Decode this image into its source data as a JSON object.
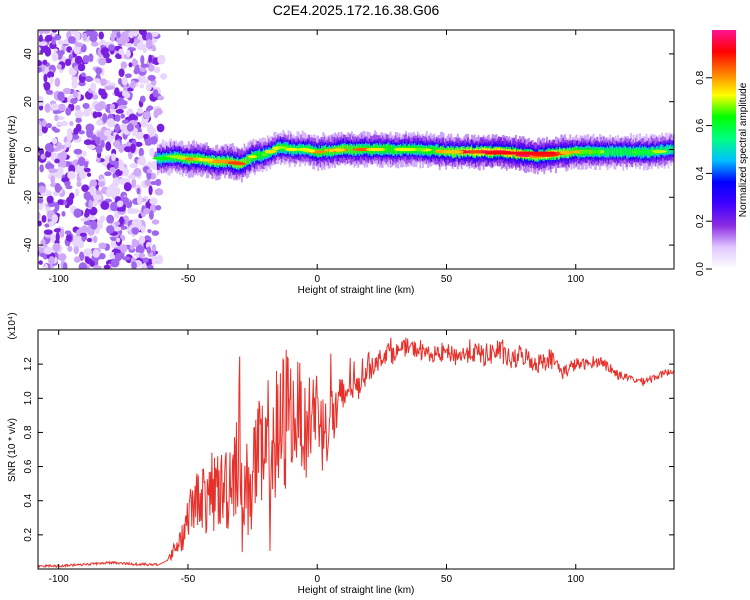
{
  "title": "C2E4.2025.172.16.38.G06",
  "chart_data": [
    {
      "type": "heatmap",
      "xlabel": "Height of straight line (km)",
      "ylabel": "Frequency (Hz)",
      "xlim": [
        -108,
        138
      ],
      "ylim": [
        -50,
        50
      ],
      "xticks": [
        -100,
        -50,
        0,
        50,
        100
      ],
      "yticks": [
        -40,
        -20,
        0,
        20,
        40
      ],
      "colorbar": {
        "label": "Normalized spectral amplitude",
        "range": [
          0,
          1
        ],
        "ticks": [
          "0.0",
          "0.2",
          "0.4",
          "0.6",
          "0.8"
        ],
        "tick_values": [
          0,
          0.2,
          0.4,
          0.6,
          0.8
        ],
        "colors": [
          "#ffffff",
          "#e0c8ff",
          "#8a2be2",
          "#4000ff",
          "#0000ff",
          "#00c0ff",
          "#00ff80",
          "#00ff00",
          "#ffff00",
          "#ff8000",
          "#ff0000",
          "#ff1493"
        ]
      },
      "noise_region_x": [
        -108,
        -62
      ],
      "ridge": {
        "x": [
          -62,
          -55,
          -50,
          -45,
          -40,
          -35,
          -30,
          -25,
          -20,
          -15,
          -10,
          -5,
          0,
          10,
          20,
          30,
          40,
          50,
          60,
          70,
          80,
          85,
          90,
          100,
          110,
          120,
          130,
          138
        ],
        "freq": [
          -4,
          -3,
          -4,
          -4,
          -5,
          -5,
          -6,
          -3,
          -2,
          1,
          0,
          0,
          -1,
          0,
          0,
          0,
          0,
          -1,
          -1,
          -1,
          -2,
          -3,
          -2,
          -1,
          -1,
          -1,
          -1,
          0
        ],
        "amplitude": [
          0.5,
          0.6,
          0.75,
          0.7,
          0.8,
          0.75,
          0.8,
          0.7,
          0.6,
          0.65,
          0.6,
          0.6,
          0.7,
          0.75,
          0.7,
          0.7,
          0.65,
          0.75,
          0.85,
          0.9,
          0.95,
          0.8,
          0.9,
          0.7,
          0.6,
          0.6,
          0.6,
          0.5
        ]
      }
    },
    {
      "type": "line",
      "xlabel": "Height of straight line (km)",
      "ylabel": "SNR (10 * v/v)",
      "yscale_label": "(x10⁴)",
      "xlim": [
        -108,
        138
      ],
      "ylim": [
        0,
        1.4
      ],
      "xticks": [
        -100,
        -50,
        0,
        50,
        100
      ],
      "yticks": [
        0.2,
        0.4,
        0.6,
        0.8,
        1.0,
        1.2
      ],
      "ytick_labels": [
        "0.2",
        "0.4",
        "0.6",
        "0.8",
        "1.0",
        "1.2"
      ],
      "color": "#e8302a",
      "series": [
        {
          "x": [
            -108,
            -100,
            -90,
            -80,
            -70,
            -62,
            -58,
            -55,
            -52,
            -50,
            -47,
            -45,
            -42,
            -40,
            -37,
            -35,
            -33,
            -30,
            -28,
            -25,
            -23,
            -20,
            -18,
            -15,
            -13,
            -11,
            -9,
            -7,
            -5,
            -3,
            0,
            3,
            5,
            7,
            10,
            13,
            15,
            18,
            20,
            23,
            25,
            28,
            30,
            35,
            40,
            45,
            50,
            55,
            60,
            65,
            70,
            75,
            80,
            85,
            90,
            95,
            100,
            105,
            110,
            115,
            120,
            125,
            130,
            135,
            138
          ],
          "y": [
            0.01,
            0.01,
            0.02,
            0.03,
            0.02,
            0.02,
            0.05,
            0.12,
            0.2,
            0.32,
            0.4,
            0.45,
            0.35,
            0.5,
            0.45,
            0.5,
            0.55,
            0.75,
            0.4,
            0.6,
            0.65,
            0.55,
            0.8,
            0.7,
            0.9,
            1.0,
            0.85,
            0.95,
            0.8,
            0.9,
            0.95,
            0.8,
            0.95,
            0.9,
            1.0,
            1.1,
            1.05,
            1.15,
            1.2,
            1.2,
            1.25,
            1.28,
            1.27,
            1.3,
            1.28,
            1.25,
            1.27,
            1.25,
            1.27,
            1.25,
            1.28,
            1.22,
            1.25,
            1.2,
            1.25,
            1.15,
            1.2,
            1.2,
            1.22,
            1.15,
            1.12,
            1.1,
            1.12,
            1.15,
            1.16
          ],
          "spread": [
            0,
            0,
            0,
            0,
            0,
            0,
            0,
            0.05,
            0.1,
            0.12,
            0.15,
            0.2,
            0.2,
            0.22,
            0.25,
            0.3,
            0.3,
            0.4,
            0.3,
            0.35,
            0.35,
            0.4,
            0.5,
            0.45,
            0.4,
            0.35,
            0.3,
            0.3,
            0.25,
            0.25,
            0.25,
            0.2,
            0.3,
            0.2,
            0.15,
            0.12,
            0.1,
            0.08,
            0.07,
            0.06,
            0.06,
            0.06,
            0.05,
            0.05,
            0.05,
            0.04,
            0.05,
            0.05,
            0.06,
            0.07,
            0.07,
            0.06,
            0.06,
            0.06,
            0.05,
            0.04,
            0.04,
            0.03,
            0.03,
            0.03,
            0.02,
            0.02,
            0.02,
            0.02,
            0.02
          ]
        }
      ]
    }
  ]
}
